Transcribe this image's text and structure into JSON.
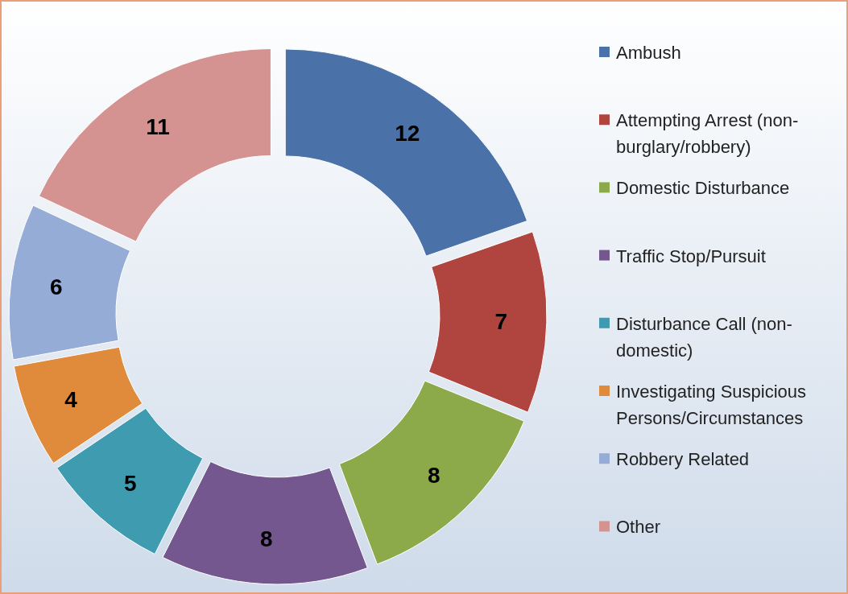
{
  "chart_data": {
    "type": "donut",
    "categories": [
      "Ambush",
      "Attempting Arrest (non-burglary/robbery)",
      "Domestic Disturbance",
      "Traffic Stop/Pursuit",
      "Disturbance Call (non-domestic)",
      "Investigating Suspicious Persons/Circumstances",
      "Robbery Related",
      "Other"
    ],
    "values": [
      12,
      7,
      8,
      8,
      5,
      4,
      6,
      11
    ],
    "colors": [
      "#4a72a8",
      "#b04540",
      "#8caa4a",
      "#74578f",
      "#3f9bb0",
      "#e08a3c",
      "#94acd6",
      "#d49391"
    ],
    "data_labels": true,
    "legend": "right"
  }
}
